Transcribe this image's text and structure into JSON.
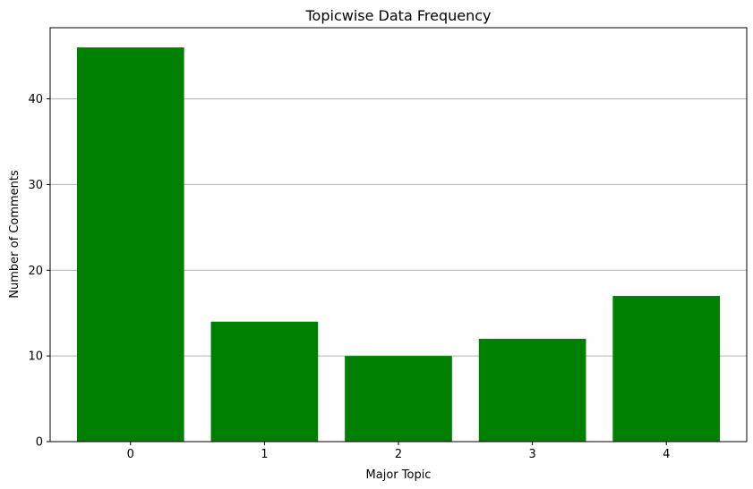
{
  "chart_data": {
    "type": "bar",
    "title": "Topicwise Data Frequency",
    "xlabel": "Major Topic",
    "ylabel": "Number of Comments",
    "categories": [
      "0",
      "1",
      "2",
      "3",
      "4"
    ],
    "values": [
      46,
      14,
      10,
      12,
      17
    ],
    "ylim": [
      0,
      48.3
    ],
    "yticks": [
      0,
      10,
      20,
      30,
      40
    ],
    "grid": "y",
    "bar_color": "#008000",
    "grid_color": "#b0b0b0"
  }
}
